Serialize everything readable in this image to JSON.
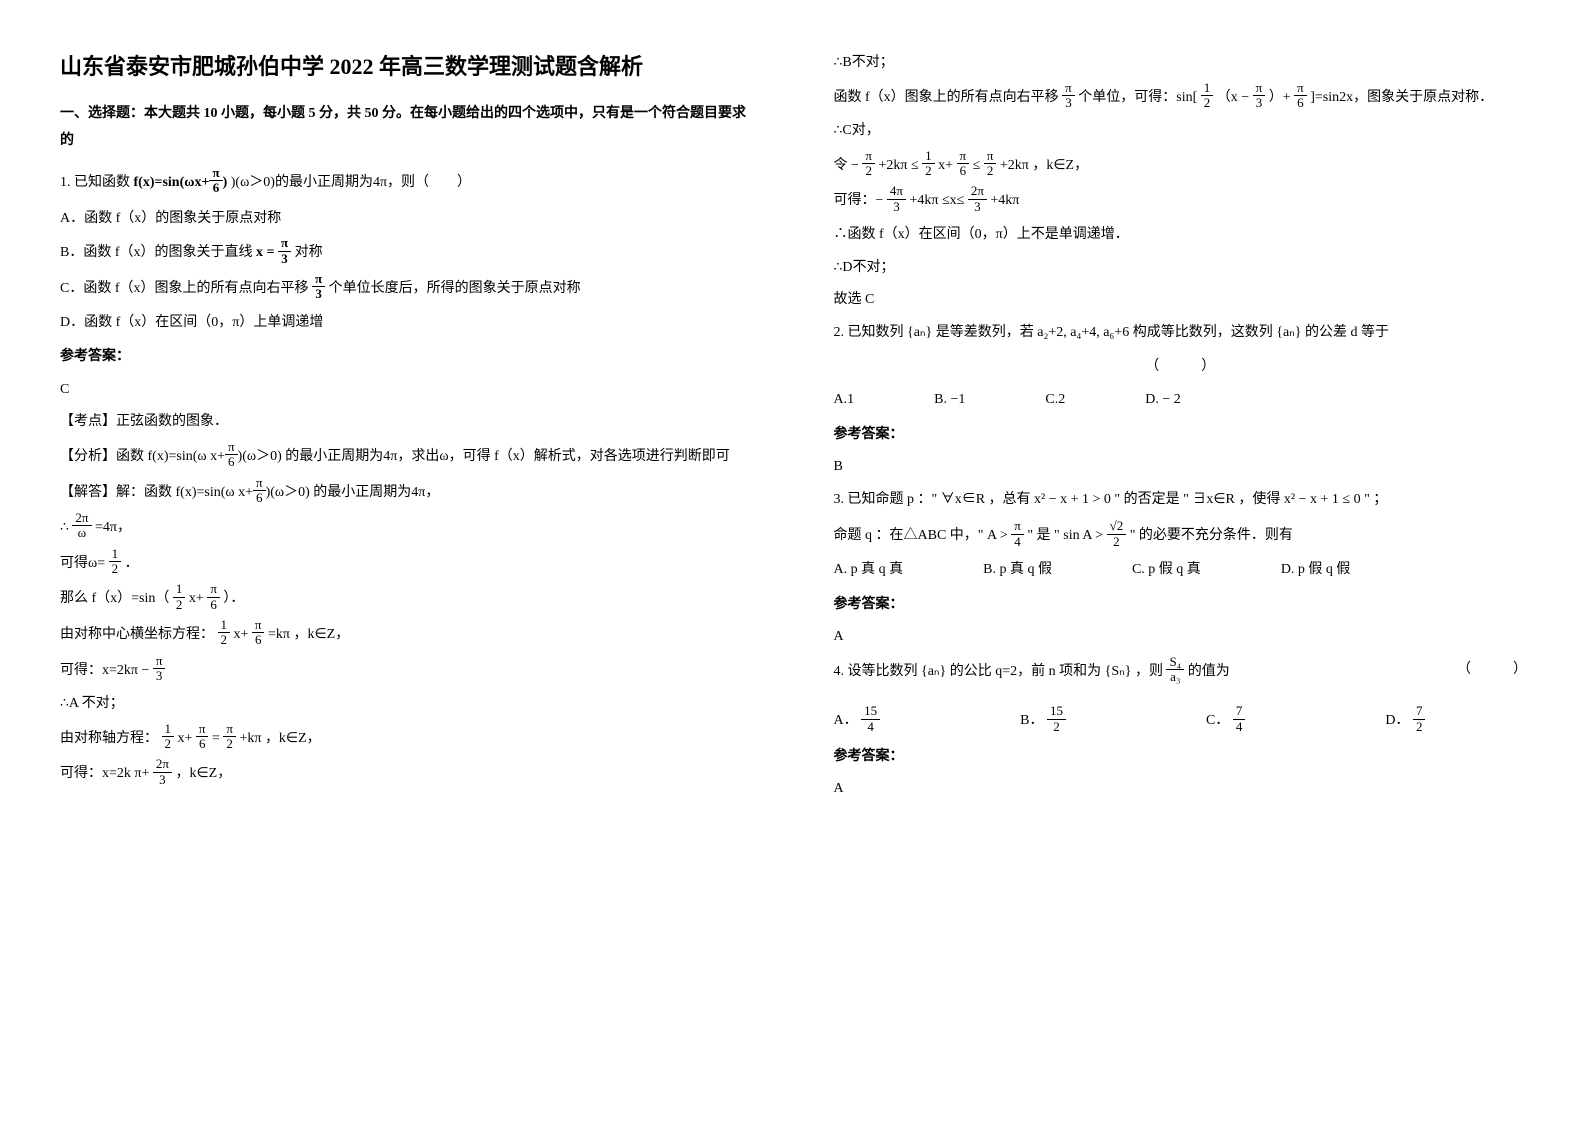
{
  "title": "山东省泰安市肥城孙伯中学 2022 年高三数学理测试题含解析",
  "section1_header": "一、选择题：本大题共 10 小题，每小题 5 分，共 50 分。在每小题给出的四个选项中，只有是一个符合题目要求的",
  "q1": {
    "stem_prefix": "1. 已知函数",
    "stem_formula": "f(x)=sin(ωx+",
    "stem_frac_num": "π",
    "stem_frac_den": "6",
    "stem_suffix": ")(ω＞0)的最小正周期为4π，则（　　）",
    "optA": "A．函数 f（x）的图象关于原点对称",
    "optB_prefix": "B．函数 f（x）的图象关于直线",
    "optB_x": "x =",
    "optB_frac_num": "π",
    "optB_frac_den": "3",
    "optB_suffix": "对称",
    "optC_prefix": "C．函数 f（x）图象上的所有点向右平移",
    "optC_frac_num": "π",
    "optC_frac_den": "3",
    "optC_suffix": "个单位长度后，所得的图象关于原点对称",
    "optD": "D．函数 f（x）在区间（0，π）上单调递增",
    "ans_label": "参考答案：",
    "ans": "C",
    "pt1": "【考点】正弦函数的图象．",
    "pt2_pre": "【分析】函数",
    "pt2_f": "f(x)=sin(ω x+",
    "pt2_num": "π",
    "pt2_den": "6",
    "pt2_mid": ")(ω＞0)",
    "pt2_suf": "的最小正周期为4π，求出ω，可得 f（x）解析式，对各选项进行判断即可",
    "pt3_pre": "【解答】解：函数",
    "pt3_f": "f(x)=sin(ω x+",
    "pt3_num": "π",
    "pt3_den": "6",
    "pt3_mid": ")(ω＞0)",
    "pt3_suf": "的最小正周期为4π，",
    "pt4_pre": "∴",
    "pt4_num": "2π",
    "pt4_den": "ω",
    "pt4_suf": "=4π，",
    "pt5_pre": "可得ω=",
    "pt5_num": "1",
    "pt5_den": "2",
    "pt5_suf": "．",
    "pt6_pre": "那么 f（x）=sin（",
    "pt6_num1": "1",
    "pt6_den1": "2",
    "pt6_mid": "x+",
    "pt6_num2": "π",
    "pt6_den2": "6",
    "pt6_suf": "）．",
    "pt7_pre": "由对称中心横坐标方程：",
    "pt7_num1": "1",
    "pt7_den1": "2",
    "pt7_mid1": "x+",
    "pt7_num2": "π",
    "pt7_den2": "6",
    "pt7_mid2": "=kπ",
    "pt7_suf": "，k∈Z，",
    "pt8_pre": "可得：x=2kπ −",
    "pt8_num": "π",
    "pt8_den": "3",
    "pt9": "∴A 不对；",
    "pt10_pre": "由对称轴方程：",
    "pt10_num1": "1",
    "pt10_den1": "2",
    "pt10_mid1": "x+",
    "pt10_num2": "π",
    "pt10_den2": "6",
    "pt10_eq": " = ",
    "pt10_num3": "π",
    "pt10_den3": "2",
    "pt10_mid2": "+kπ",
    "pt10_suf": "，k∈Z，",
    "pt11_pre": "可得：x=2k",
    "pt11_mid": "π+",
    "pt11_num": "2π",
    "pt11_den": "3",
    "pt11_suf": "，k∈Z，"
  },
  "r1": {
    "l1": "∴B不对；",
    "l2_pre": "函数 f（x）图象上的所有点向右平移",
    "l2_num": "π",
    "l2_den": "3",
    "l2_mid": "个单位，可得：sin[",
    "l2_num2": "1",
    "l2_den2": "2",
    "l2_mid2": "（x −",
    "l2_num3": "π",
    "l2_den3": "3",
    "l2_mid3": "）+",
    "l2_num4": "π",
    "l2_den4": "6",
    "l2_suf": "]=sin2x，图象关于原点对称．",
    "l3": "∴C对，",
    "l4_pre": "令 −",
    "l4_num1": "π",
    "l4_den1": "2",
    "l4_mid1": "+2kπ ≤",
    "l4_num2": "1",
    "l4_den2": "2",
    "l4_mid2": "x+",
    "l4_num3": "π",
    "l4_den3": "6",
    "l4_mid3": "≤",
    "l4_num4": "π",
    "l4_den4": "2",
    "l4_mid4": "+2kπ",
    "l4_suf": "，k∈Z，",
    "l5_pre": "可得：−",
    "l5_num1": "4π",
    "l5_den1": "3",
    "l5_mid1": "+4kπ ≤x≤",
    "l5_num2": "2π",
    "l5_den2": "3",
    "l5_mid2": "+4kπ",
    "l6": "∴函数 f（x）在区间（0，π）上不是单调递增．",
    "l7": "∴D不对；",
    "l8": "故选 C"
  },
  "q2": {
    "pre": "2. 已知数列",
    "set1": "{aₙ}",
    "mid1": "是等差数列，若",
    "expr": "a₂+2, a₄+4, a₆+6",
    "mid2": "构成等比数列，这数列",
    "set2": "{aₙ}",
    "mid3": "的公差 d 等于",
    "paren": "（　　　）",
    "A": "A.1",
    "B": "B. −1",
    "C": "C.2",
    "D": "D. − 2",
    "ans_label": "参考答案：",
    "ans": "B"
  },
  "q3": {
    "pre": "3. 已知命题 p ：\" ∀x∈R ，总有 x² − x + 1 > 0 \" 的否定是 \" ∃x∈R ，使得 x² − x + 1 ≤ 0 \" ；",
    "pre2": "命题 q ：在△ABC 中，\"",
    "q_num1": "π",
    "q_den1": "4",
    "q_mid": "A > ",
    "q_mid2": "\" 是 \"",
    "q_expr2": "sin A > ",
    "q_num2": "√2",
    "q_den2": "2",
    "q_suf": "\" 的必要不充分条件．则有",
    "A": "A.  p 真 q 真",
    "B": "B.  p 真 q 假",
    "C": "C.  p 假 q 真",
    "D": "D.  p 假 q 假",
    "ans_label": "参考答案：",
    "ans": "A"
  },
  "q4": {
    "pre": "4. 设等比数列",
    "set": "{aₙ}",
    "mid": "的公比 q=2，前 n 项和为",
    "sn": "{Sₙ}",
    "mid2": "，则",
    "frac_num": "S₄",
    "frac_den": "a₃",
    "suf": "的值为",
    "paren": "（　　　）",
    "A_pre": "A．",
    "A_num": "15",
    "A_den": "4",
    "B_pre": "B．",
    "B_num": "15",
    "B_den": "2",
    "C_pre": "C．",
    "C_num": "7",
    "C_den": "4",
    "D_pre": "D．",
    "D_num": "7",
    "D_den": "2",
    "ans_label": "参考答案：",
    "ans": "A"
  }
}
